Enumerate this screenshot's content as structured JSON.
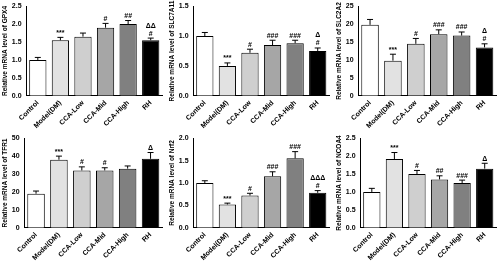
{
  "chart_data": [
    {
      "type": "bar",
      "ylabel": "Relative mRNA level of GPX4",
      "categories": [
        "Control",
        "Model(DM)",
        "CCA-Low",
        "CCA-Mid",
        "CCA-High",
        "RH"
      ],
      "values": [
        1.0,
        1.55,
        1.65,
        1.9,
        2.0,
        1.55
      ],
      "errors": [
        0.07,
        0.08,
        0.1,
        0.12,
        0.1,
        0.06
      ],
      "annotations": [
        null,
        [
          "***"
        ],
        null,
        [
          "#"
        ],
        [
          "##"
        ],
        [
          "ΔΔ",
          "#"
        ]
      ],
      "colors": [
        "#ffffff",
        "#e2e2e2",
        "#cfcfcf",
        "#a6a6a6",
        "#808080",
        "#000000"
      ],
      "ylim": [
        0,
        2.5
      ],
      "yticks": [
        {
          "value": 0,
          "label": "0.0"
        },
        {
          "value": 0.5,
          "label": "0.5"
        },
        {
          "value": 1,
          "label": "1.0"
        },
        {
          "value": 1.5,
          "label": "1.5"
        },
        {
          "value": 2,
          "label": "2.0"
        },
        {
          "value": 2.5,
          "label": "2.5"
        }
      ],
      "grid": false
    },
    {
      "type": "bar",
      "ylabel": "Relative mRNA level of SLC7A11",
      "categories": [
        "Control",
        "Model(DM)",
        "CCA-Low",
        "CCA-Mid",
        "CCA-High",
        "RH"
      ],
      "values": [
        1.0,
        0.5,
        0.72,
        0.85,
        0.88,
        0.75
      ],
      "errors": [
        0.06,
        0.05,
        0.06,
        0.08,
        0.05,
        0.05
      ],
      "annotations": [
        null,
        [
          "***"
        ],
        [
          "#"
        ],
        [
          "###"
        ],
        [
          "###"
        ],
        [
          "Δ",
          "#"
        ]
      ],
      "colors": [
        "#ffffff",
        "#e2e2e2",
        "#cfcfcf",
        "#a6a6a6",
        "#808080",
        "#000000"
      ],
      "ylim": [
        0,
        1.5
      ],
      "yticks": [
        {
          "value": 0,
          "label": "0.0"
        },
        {
          "value": 0.5,
          "label": "0.5"
        },
        {
          "value": 1,
          "label": "1.0"
        },
        {
          "value": 1.5,
          "label": "1.5"
        }
      ],
      "grid": false
    },
    {
      "type": "bar",
      "ylabel": "Relative mRNA level of SLC2A2",
      "categories": [
        "Control",
        "Model(DM)",
        "CCA-Low",
        "CCA-Mid",
        "CCA-High",
        "RH"
      ],
      "values": [
        19.8,
        9.8,
        14.5,
        17.2,
        16.8,
        13.5
      ],
      "errors": [
        1.5,
        1.8,
        1.5,
        1.2,
        1.0,
        1.0
      ],
      "annotations": [
        null,
        [
          "***"
        ],
        [
          "#"
        ],
        [
          "###"
        ],
        [
          "###"
        ],
        [
          "Δ",
          "#"
        ]
      ],
      "colors": [
        "#ffffff",
        "#e2e2e2",
        "#cfcfcf",
        "#a6a6a6",
        "#808080",
        "#000000"
      ],
      "ylim": [
        0,
        25
      ],
      "yticks": [
        0,
        5,
        10,
        15,
        20,
        25
      ],
      "grid": false
    },
    {
      "type": "bar",
      "ylabel": "Relative mRNA level of TFR1",
      "categories": [
        "Control",
        "Model(DM)",
        "CCA-Low",
        "CCA-Mid",
        "CCA-High",
        "RH"
      ],
      "values": [
        19,
        38,
        32,
        32,
        33,
        38.5
      ],
      "errors": [
        1.5,
        2.0,
        2.0,
        1.5,
        1.5,
        3.5
      ],
      "annotations": [
        null,
        [
          "***"
        ],
        [
          "#"
        ],
        [
          "#"
        ],
        null,
        [
          "Δ"
        ]
      ],
      "colors": [
        "#ffffff",
        "#e2e2e2",
        "#cfcfcf",
        "#a6a6a6",
        "#808080",
        "#000000"
      ],
      "ylim": [
        0,
        50
      ],
      "yticks": [
        0,
        10,
        20,
        30,
        40,
        50
      ],
      "grid": false
    },
    {
      "type": "bar",
      "ylabel": "Relative mRNA level of Nrf2",
      "categories": [
        "Control",
        "Model(DM)",
        "CCA-Low",
        "CCA-Mid",
        "CCA-High",
        "RH"
      ],
      "values": [
        1.0,
        0.52,
        0.72,
        1.15,
        1.55,
        0.78
      ],
      "errors": [
        0.05,
        0.03,
        0.05,
        0.1,
        0.15,
        0.05
      ],
      "annotations": [
        null,
        [
          "***"
        ],
        [
          "#"
        ],
        [
          "###"
        ],
        [
          "###"
        ],
        [
          "ΔΔΔ",
          "#"
        ]
      ],
      "colors": [
        "#ffffff",
        "#e2e2e2",
        "#cfcfcf",
        "#a6a6a6",
        "#808080",
        "#000000"
      ],
      "ylim": [
        0,
        2
      ],
      "yticks": [
        {
          "value": 0,
          "label": "0.0"
        },
        {
          "value": 0.5,
          "label": "0.5"
        },
        {
          "value": 1,
          "label": "1.0"
        },
        {
          "value": 1.5,
          "label": "1.5"
        },
        {
          "value": 2,
          "label": "2.0"
        }
      ],
      "grid": false
    },
    {
      "type": "bar",
      "ylabel": "Relative mRNA level of NCOA4",
      "categories": [
        "Control",
        "Model(DM)",
        "CCA-Low",
        "CCA-Mid",
        "CCA-High",
        "RH"
      ],
      "values": [
        1.0,
        1.92,
        1.5,
        1.35,
        1.25,
        1.65
      ],
      "errors": [
        0.1,
        0.18,
        0.1,
        0.1,
        0.08,
        0.15
      ],
      "annotations": [
        null,
        [
          "***"
        ],
        [
          "#"
        ],
        [
          "##"
        ],
        [
          "###"
        ],
        [
          "Δ"
        ]
      ],
      "colors": [
        "#ffffff",
        "#e2e2e2",
        "#cfcfcf",
        "#a6a6a6",
        "#808080",
        "#000000"
      ],
      "ylim": [
        0,
        2.5
      ],
      "yticks": [
        {
          "value": 0,
          "label": "0.0"
        },
        {
          "value": 0.5,
          "label": "0.5"
        },
        {
          "value": 1,
          "label": "1.0"
        },
        {
          "value": 1.5,
          "label": "1.5"
        },
        {
          "value": 2,
          "label": "2.0"
        },
        {
          "value": 2.5,
          "label": "2.5"
        }
      ],
      "grid": false
    }
  ]
}
